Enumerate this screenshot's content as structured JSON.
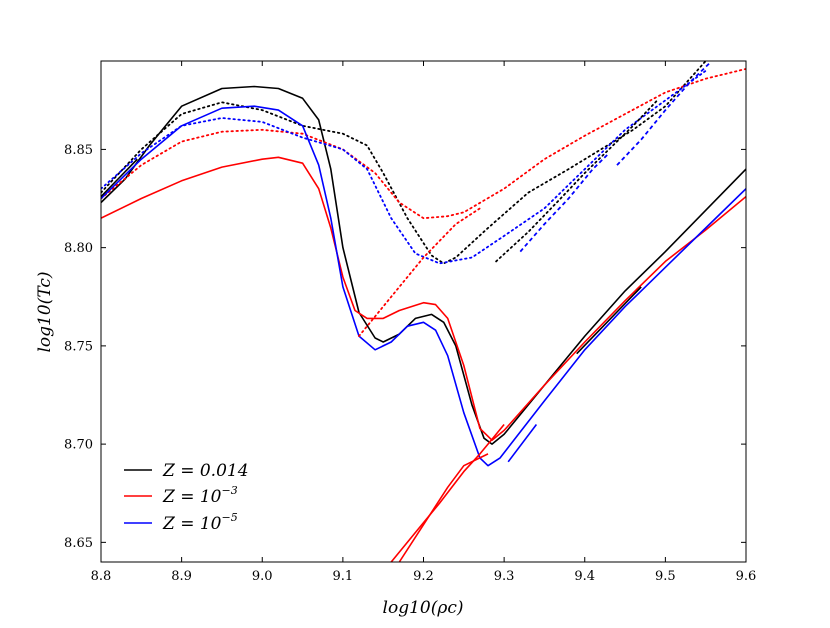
{
  "chart_data": {
    "type": "line",
    "title": "",
    "xlabel": "log10(ρc)",
    "ylabel": "log10(Tc)",
    "xlim": [
      8.8,
      9.6
    ],
    "ylim": [
      8.64,
      8.895
    ],
    "xticks": [
      {
        "value": 8.8,
        "label": "8.8"
      },
      {
        "value": 8.9,
        "label": "8.9"
      },
      {
        "value": 9.0,
        "label": "9.0"
      },
      {
        "value": 9.1,
        "label": "9.1"
      },
      {
        "value": 9.2,
        "label": "9.2"
      },
      {
        "value": 9.3,
        "label": "9.3"
      },
      {
        "value": 9.4,
        "label": "9.4"
      },
      {
        "value": 9.5,
        "label": "9.5"
      },
      {
        "value": 9.6,
        "label": "9.6"
      }
    ],
    "yticks": [
      {
        "value": 8.65,
        "label": "8.65"
      },
      {
        "value": 8.7,
        "label": "8.70"
      },
      {
        "value": 8.75,
        "label": "8.75"
      },
      {
        "value": 8.8,
        "label": "8.80"
      },
      {
        "value": 8.85,
        "label": "8.85"
      }
    ],
    "legend": {
      "placement": "lower-left",
      "entries": [
        {
          "series": "black",
          "color": "#000000",
          "label_main": "Z = 0.014",
          "label_sup": ""
        },
        {
          "series": "red",
          "color": "#ff0000",
          "label_main": "Z = 10",
          "label_sup": "−3"
        },
        {
          "series": "blue",
          "color": "#0000ff",
          "label_main": "Z = 10",
          "label_sup": "−5"
        }
      ]
    },
    "series": [
      {
        "name": "Z=0.014 solid",
        "color": "#000000",
        "style": "solid",
        "points": [
          [
            8.8,
            8.823
          ],
          [
            8.83,
            8.835
          ],
          [
            8.86,
            8.852
          ],
          [
            8.9,
            8.872
          ],
          [
            8.95,
            8.881
          ],
          [
            8.99,
            8.882
          ],
          [
            9.02,
            8.881
          ],
          [
            9.05,
            8.876
          ],
          [
            9.07,
            8.865
          ],
          [
            9.085,
            8.84
          ],
          [
            9.1,
            8.8
          ],
          [
            9.12,
            8.767
          ],
          [
            9.14,
            8.754
          ],
          [
            9.15,
            8.752
          ],
          [
            9.17,
            8.756
          ],
          [
            9.19,
            8.764
          ],
          [
            9.21,
            8.766
          ],
          [
            9.225,
            8.762
          ],
          [
            9.24,
            8.75
          ],
          [
            9.26,
            8.72
          ],
          [
            9.275,
            8.703
          ],
          [
            9.285,
            8.7
          ],
          [
            9.3,
            8.705
          ],
          [
            9.35,
            8.73
          ],
          [
            9.4,
            8.755
          ],
          [
            9.45,
            8.778
          ],
          [
            9.5,
            8.798
          ],
          [
            9.55,
            8.819
          ],
          [
            9.6,
            8.84
          ]
        ]
      },
      {
        "name": "Z=0.014 dotted",
        "color": "#000000",
        "style": "dotted",
        "points": [
          [
            8.8,
            8.828
          ],
          [
            8.85,
            8.85
          ],
          [
            8.9,
            8.868
          ],
          [
            8.95,
            8.874
          ],
          [
            9.0,
            8.87
          ],
          [
            9.05,
            8.862
          ],
          [
            9.1,
            8.858
          ],
          [
            9.13,
            8.852
          ],
          [
            9.15,
            8.838
          ],
          [
            9.18,
            8.815
          ],
          [
            9.21,
            8.796
          ],
          [
            9.225,
            8.792
          ],
          [
            9.24,
            8.795
          ],
          [
            9.28,
            8.81
          ],
          [
            9.33,
            8.828
          ],
          [
            9.38,
            8.84
          ],
          [
            9.42,
            8.85
          ],
          [
            9.46,
            8.86
          ],
          [
            9.5,
            8.872
          ],
          [
            9.55,
            8.895
          ]
        ]
      },
      {
        "name": "Z=1e-3 solid",
        "color": "#ff0000",
        "style": "solid",
        "points": [
          [
            8.8,
            8.815
          ],
          [
            8.85,
            8.825
          ],
          [
            8.9,
            8.834
          ],
          [
            8.95,
            8.841
          ],
          [
            9.0,
            8.845
          ],
          [
            9.02,
            8.846
          ],
          [
            9.05,
            8.843
          ],
          [
            9.07,
            8.83
          ],
          [
            9.085,
            8.81
          ],
          [
            9.1,
            8.785
          ],
          [
            9.115,
            8.768
          ],
          [
            9.13,
            8.764
          ],
          [
            9.15,
            8.764
          ],
          [
            9.17,
            8.768
          ],
          [
            9.2,
            8.772
          ],
          [
            9.215,
            8.771
          ],
          [
            9.23,
            8.764
          ],
          [
            9.25,
            8.74
          ],
          [
            9.27,
            8.708
          ],
          [
            9.285,
            8.702
          ],
          [
            9.3,
            8.707
          ],
          [
            9.35,
            8.73
          ],
          [
            9.4,
            8.752
          ],
          [
            9.45,
            8.773
          ],
          [
            9.5,
            8.793
          ],
          [
            9.55,
            8.809
          ],
          [
            9.6,
            8.826
          ]
        ]
      },
      {
        "name": "Z=1e-3 dotted",
        "color": "#ff0000",
        "style": "dotted",
        "points": [
          [
            8.8,
            8.825
          ],
          [
            8.85,
            8.842
          ],
          [
            8.9,
            8.854
          ],
          [
            8.95,
            8.859
          ],
          [
            9.0,
            8.86
          ],
          [
            9.05,
            8.858
          ],
          [
            9.1,
            8.85
          ],
          [
            9.14,
            8.838
          ],
          [
            9.17,
            8.823
          ],
          [
            9.2,
            8.815
          ],
          [
            9.23,
            8.816
          ],
          [
            9.25,
            8.818
          ],
          [
            9.3,
            8.83
          ],
          [
            9.35,
            8.845
          ],
          [
            9.4,
            8.857
          ],
          [
            9.45,
            8.868
          ],
          [
            9.5,
            8.879
          ],
          [
            9.55,
            8.886
          ],
          [
            9.6,
            8.891
          ]
        ]
      },
      {
        "name": "Z=1e-5 solid",
        "color": "#0000ff",
        "style": "solid",
        "points": [
          [
            8.8,
            8.825
          ],
          [
            8.85,
            8.845
          ],
          [
            8.9,
            8.862
          ],
          [
            8.95,
            8.871
          ],
          [
            8.99,
            8.872
          ],
          [
            9.02,
            8.87
          ],
          [
            9.05,
            8.862
          ],
          [
            9.07,
            8.842
          ],
          [
            9.085,
            8.815
          ],
          [
            9.1,
            8.78
          ],
          [
            9.12,
            8.755
          ],
          [
            9.14,
            8.748
          ],
          [
            9.16,
            8.752
          ],
          [
            9.18,
            8.76
          ],
          [
            9.2,
            8.762
          ],
          [
            9.215,
            8.758
          ],
          [
            9.23,
            8.745
          ],
          [
            9.25,
            8.716
          ],
          [
            9.27,
            8.693
          ],
          [
            9.28,
            8.689
          ],
          [
            9.295,
            8.693
          ],
          [
            9.35,
            8.722
          ],
          [
            9.4,
            8.748
          ],
          [
            9.45,
            8.77
          ],
          [
            9.5,
            8.79
          ],
          [
            9.55,
            8.81
          ],
          [
            9.6,
            8.83
          ]
        ]
      },
      {
        "name": "Z=1e-5 dotted",
        "color": "#0000ff",
        "style": "dotted",
        "points": [
          [
            8.8,
            8.83
          ],
          [
            8.85,
            8.848
          ],
          [
            8.9,
            8.862
          ],
          [
            8.95,
            8.866
          ],
          [
            9.0,
            8.864
          ],
          [
            9.05,
            8.856
          ],
          [
            9.1,
            8.85
          ],
          [
            9.13,
            8.84
          ],
          [
            9.16,
            8.815
          ],
          [
            9.19,
            8.797
          ],
          [
            9.22,
            8.792
          ],
          [
            9.26,
            8.795
          ],
          [
            9.3,
            8.806
          ],
          [
            9.35,
            8.82
          ],
          [
            9.4,
            8.84
          ],
          [
            9.45,
            8.86
          ],
          [
            9.5,
            8.875
          ],
          [
            9.55,
            8.89
          ]
        ]
      },
      {
        "name": "Z=1e-3 inner solid",
        "color": "#ff0000",
        "style": "solid",
        "points": [
          [
            9.16,
            8.64
          ],
          [
            9.19,
            8.655
          ],
          [
            9.22,
            8.67
          ],
          [
            9.25,
            8.686
          ],
          [
            9.27,
            8.695
          ],
          [
            9.28,
            8.7
          ],
          [
            9.3,
            8.71
          ]
        ]
      },
      {
        "name": "Z=1e-3 inner solid 2",
        "color": "#ff0000",
        "style": "solid",
        "points": [
          [
            9.17,
            8.64
          ],
          [
            9.2,
            8.659
          ],
          [
            9.23,
            8.678
          ],
          [
            9.25,
            8.689
          ],
          [
            9.28,
            8.695
          ]
        ]
      },
      {
        "name": "Z=1e-3 rising dotted",
        "color": "#ff0000",
        "style": "dotted",
        "points": [
          [
            9.12,
            8.755
          ],
          [
            9.16,
            8.775
          ],
          [
            9.2,
            8.795
          ],
          [
            9.24,
            8.812
          ],
          [
            9.27,
            8.82
          ]
        ]
      },
      {
        "name": "Z=0.014 dotted branch",
        "color": "#000000",
        "style": "dotted",
        "points": [
          [
            9.29,
            8.793
          ],
          [
            9.33,
            8.808
          ],
          [
            9.37,
            8.825
          ],
          [
            9.4,
            8.838
          ],
          [
            9.43,
            8.85
          ],
          [
            9.46,
            8.862
          ],
          [
            9.49,
            8.875
          ]
        ]
      },
      {
        "name": "Z=1e-5 dashed branch 1",
        "color": "#0000ff",
        "style": "dashed",
        "points": [
          [
            9.32,
            8.798
          ],
          [
            9.35,
            8.812
          ],
          [
            9.38,
            8.825
          ],
          [
            9.41,
            8.84
          ],
          [
            9.43,
            8.848
          ]
        ]
      },
      {
        "name": "Z=1e-5 dashed branch 2",
        "color": "#0000ff",
        "style": "dashed",
        "points": [
          [
            9.44,
            8.842
          ],
          [
            9.47,
            8.855
          ],
          [
            9.5,
            8.87
          ],
          [
            9.53,
            8.884
          ],
          [
            9.555,
            8.894
          ]
        ]
      },
      {
        "name": "Z=0.014 short segment 1",
        "color": "#000000",
        "style": "solid",
        "points": [
          [
            8.8,
            8.826
          ],
          [
            8.845,
            8.845
          ]
        ]
      },
      {
        "name": "Z=0.014 short segment 2",
        "color": "#000000",
        "style": "solid",
        "points": [
          [
            9.39,
            8.746
          ],
          [
            9.47,
            8.78
          ]
        ]
      },
      {
        "name": "Z=1e-5 short segment",
        "color": "#0000ff",
        "style": "solid",
        "points": [
          [
            9.305,
            8.691
          ],
          [
            9.34,
            8.71
          ]
        ]
      }
    ]
  }
}
